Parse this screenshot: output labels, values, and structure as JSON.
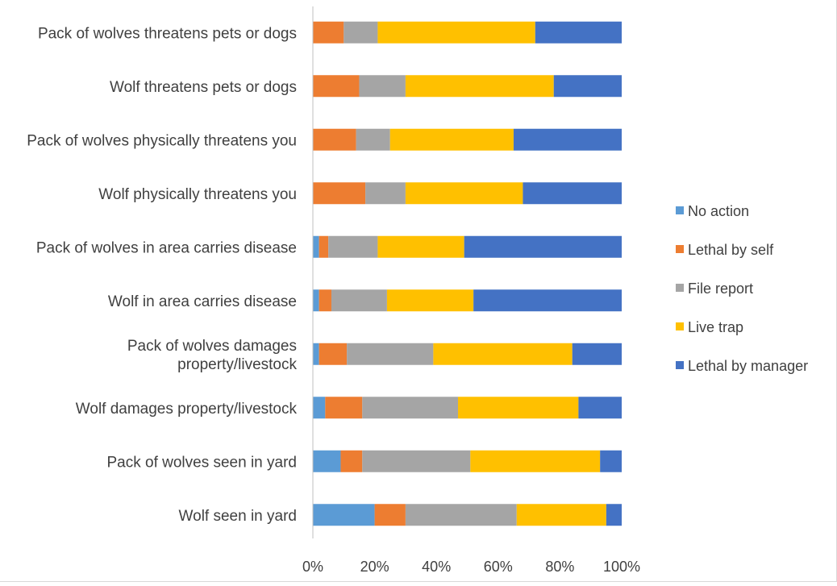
{
  "chart_data": {
    "type": "bar",
    "orientation": "horizontal",
    "stacked": true,
    "percent_stacked": true,
    "categories": [
      [
        "Pack of wolves threatens pets or dogs"
      ],
      [
        "Wolf threatens pets or dogs"
      ],
      [
        "Pack of wolves physically threatens you"
      ],
      [
        "Wolf physically threatens you"
      ],
      [
        "Pack of wolves in area carries disease"
      ],
      [
        "Wolf in area carries disease"
      ],
      [
        "Pack of wolves damages",
        "property/livestock"
      ],
      [
        "Wolf damages property/livestock"
      ],
      [
        "Pack of wolves seen in yard"
      ],
      [
        "Wolf seen in yard"
      ]
    ],
    "series": [
      {
        "name": "No action",
        "color": "#5b9bd5",
        "values": [
          0,
          0,
          0,
          0,
          2,
          2,
          2,
          4,
          9,
          20
        ]
      },
      {
        "name": "Lethal by self",
        "color": "#ed7d31",
        "values": [
          10,
          15,
          14,
          17,
          3,
          4,
          9,
          12,
          7,
          10
        ]
      },
      {
        "name": "File report",
        "color": "#a5a5a5",
        "values": [
          11,
          15,
          11,
          13,
          16,
          18,
          28,
          31,
          35,
          36
        ]
      },
      {
        "name": "Live trap",
        "color": "#ffc000",
        "values": [
          51,
          48,
          40,
          38,
          28,
          28,
          45,
          39,
          42,
          29
        ]
      },
      {
        "name": "Lethal by manager",
        "color": "#4472c4",
        "values": [
          28,
          22,
          35,
          32,
          51,
          48,
          16,
          14,
          7,
          5
        ]
      }
    ],
    "x_ticks": [
      "0%",
      "20%",
      "40%",
      "60%",
      "80%",
      "100%"
    ],
    "xlim": [
      0,
      100
    ],
    "grid": false,
    "legend_position": "right",
    "title": "",
    "xlabel": "",
    "ylabel": ""
  }
}
